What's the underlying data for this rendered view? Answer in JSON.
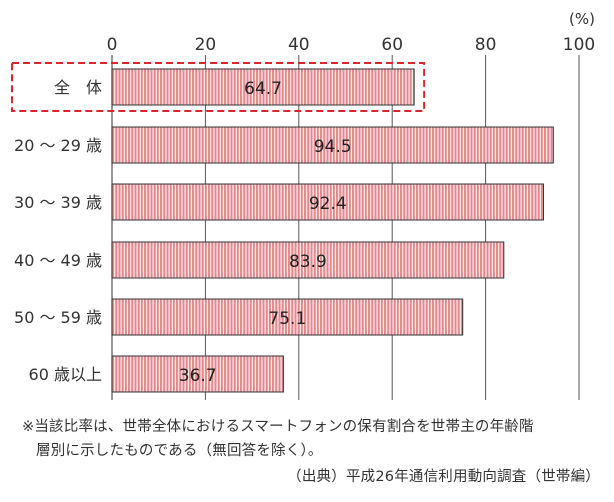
{
  "chart_data": {
    "type": "bar",
    "orientation": "horizontal",
    "unit_label": "(%)",
    "categories": [
      "全　体",
      "20 ～ 29 歳",
      "30 ～ 39 歳",
      "40 ～ 49 歳",
      "50 ～ 59 歳",
      "60 歳以上"
    ],
    "values": [
      64.7,
      94.5,
      92.4,
      83.9,
      75.1,
      36.7
    ],
    "value_labels": [
      "64.7",
      "94.5",
      "92.4",
      "83.9",
      "75.1",
      "36.7"
    ],
    "xlim": [
      0,
      100
    ],
    "ticks": [
      0,
      20,
      40,
      60,
      80,
      100
    ],
    "tick_labels": [
      "0",
      "20",
      "40",
      "60",
      "80",
      "100"
    ],
    "grid": true,
    "highlight_category": "全　体",
    "colors": {
      "bar_fill": "#e38a8f",
      "bar_stripe": "#ffffff",
      "bar_border": "#333333",
      "highlight": "#d9262c",
      "grid": "#555555"
    }
  },
  "notes": {
    "line1": "※当該比率は、世帯全体におけるスマートフォンの保有割合を世帯主の年齢階",
    "line2": "層別に示したものである（無回答を除く）。"
  },
  "source": "（出典）平成26年通信利用動向調査（世帯編）"
}
